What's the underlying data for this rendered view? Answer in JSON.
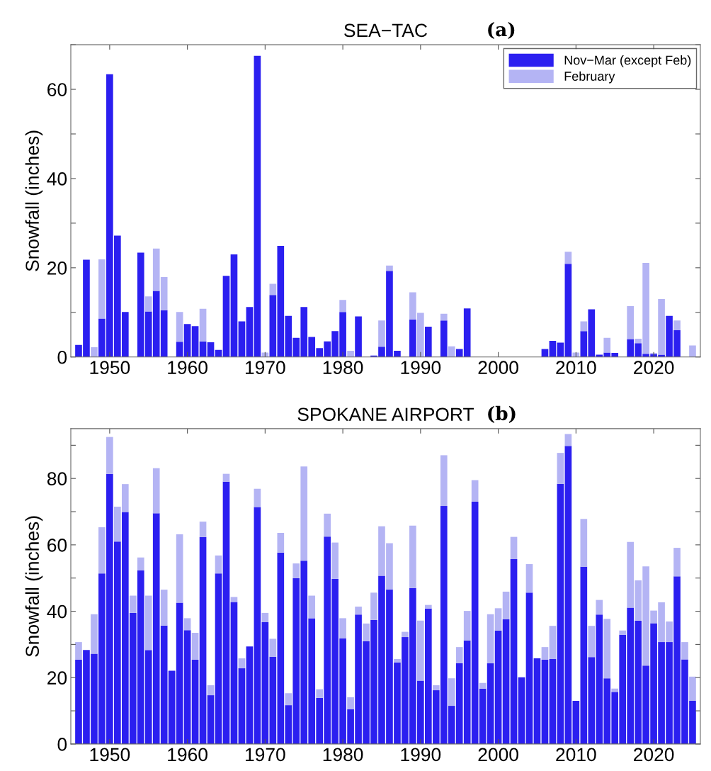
{
  "chart_data": [
    {
      "type": "bar",
      "stacked": true,
      "title": "SEA−TAC",
      "annotations": [
        "(a)"
      ],
      "ylabel": "Snowfall (inches)",
      "legend": "top right",
      "grid": false,
      "x": [
        1946,
        1947,
        1948,
        1949,
        1950,
        1951,
        1952,
        1953,
        1954,
        1955,
        1956,
        1957,
        1958,
        1959,
        1960,
        1961,
        1962,
        1963,
        1964,
        1965,
        1966,
        1967,
        1968,
        1969,
        1970,
        1971,
        1972,
        1973,
        1974,
        1975,
        1976,
        1977,
        1978,
        1979,
        1980,
        1981,
        1982,
        1983,
        1984,
        1985,
        1986,
        1987,
        1988,
        1989,
        1990,
        1991,
        1992,
        1993,
        1994,
        1995,
        1996,
        1997,
        1998,
        1999,
        2000,
        2001,
        2002,
        2003,
        2004,
        2005,
        2006,
        2007,
        2008,
        2009,
        2010,
        2011,
        2012,
        2013,
        2014,
        2015,
        2016,
        2017,
        2018,
        2019,
        2020,
        2021,
        2022,
        2023,
        2024,
        2025
      ],
      "series": [
        {
          "name": "Nov−Mar (except Feb)",
          "color": "#2b1ff0",
          "values": [
            2.7,
            21.8,
            0,
            8.6,
            63.4,
            27.2,
            10.1,
            0,
            23.4,
            10.2,
            14.8,
            10.5,
            0,
            3.4,
            7.4,
            6.9,
            3.5,
            3.3,
            1.6,
            18.2,
            23.0,
            8.0,
            11.2,
            67.5,
            0,
            13.9,
            24.9,
            9.2,
            4.3,
            11.2,
            4.5,
            2.0,
            3.5,
            5.8,
            10.1,
            0,
            9.1,
            0,
            0.3,
            2.3,
            19.3,
            1.4,
            0,
            8.4,
            0,
            6.8,
            0,
            8.2,
            0,
            1.8,
            10.9,
            0,
            0,
            0,
            0,
            0,
            0,
            0,
            0,
            0,
            1.8,
            3.6,
            3.2,
            20.9,
            0,
            5.8,
            10.7,
            0.5,
            1.0,
            0.9,
            0,
            4.0,
            3.1,
            0.7,
            0.6,
            0.5,
            9.2,
            6.0,
            0,
            0
          ]
        },
        {
          "name": "February",
          "color": "#b4b4f4",
          "values": [
            0,
            0,
            2.2,
            13.3,
            0,
            0,
            0,
            0,
            0,
            3.4,
            9.5,
            7.4,
            0,
            6.7,
            0,
            0,
            7.3,
            0,
            0,
            0,
            0,
            0,
            0,
            0,
            1.0,
            2.5,
            0,
            0,
            0,
            0,
            0,
            0,
            0,
            0,
            2.7,
            1.4,
            0,
            0,
            0,
            5.9,
            1.2,
            0,
            0,
            6.1,
            9.9,
            0,
            0,
            1.5,
            2.4,
            0,
            0,
            0,
            0,
            0,
            0,
            0,
            0,
            0,
            0,
            0,
            0,
            0,
            0,
            2.7,
            1.0,
            2.2,
            0,
            0,
            3.3,
            0,
            0,
            7.4,
            1.0,
            20.4,
            0.3,
            12.5,
            0,
            2.2,
            0,
            2.6
          ]
        }
      ],
      "xlim": [
        1945,
        2026
      ],
      "xticks": [
        1950,
        1960,
        1970,
        1980,
        1990,
        2000,
        2010,
        2020
      ],
      "ylim": [
        0,
        70
      ],
      "yticks": [
        0,
        {
          "value": 10,
          "label": null
        },
        20,
        {
          "value": 30,
          "label": null
        },
        40,
        {
          "value": 50,
          "label": null
        },
        60,
        {
          "value": 70,
          "label": null
        }
      ]
    },
    {
      "type": "bar",
      "stacked": true,
      "title": "SPOKANE AIRPORT",
      "annotations": [
        "(b)"
      ],
      "ylabel": "Snowfall (inches)",
      "grid": false,
      "x": [
        1946,
        1947,
        1948,
        1949,
        1950,
        1951,
        1952,
        1953,
        1954,
        1955,
        1956,
        1957,
        1958,
        1959,
        1960,
        1961,
        1962,
        1963,
        1964,
        1965,
        1966,
        1967,
        1968,
        1969,
        1970,
        1971,
        1972,
        1973,
        1974,
        1975,
        1976,
        1977,
        1978,
        1979,
        1980,
        1981,
        1982,
        1983,
        1984,
        1985,
        1986,
        1987,
        1988,
        1989,
        1990,
        1991,
        1992,
        1993,
        1994,
        1995,
        1996,
        1997,
        1998,
        1999,
        2000,
        2001,
        2002,
        2003,
        2004,
        2005,
        2006,
        2007,
        2008,
        2009,
        2010,
        2011,
        2012,
        2013,
        2014,
        2015,
        2016,
        2017,
        2018,
        2019,
        2020,
        2021,
        2022,
        2023,
        2024,
        2025
      ],
      "series": [
        {
          "color": "#2b1ff0",
          "values": [
            25.4,
            28.3,
            27.2,
            51.4,
            81.4,
            61.0,
            69.9,
            39.5,
            52.3,
            28.3,
            69.5,
            35.7,
            22.1,
            42.6,
            34.3,
            25.4,
            62.4,
            14.7,
            51.4,
            79.0,
            42.8,
            22.8,
            29.4,
            71.4,
            36.7,
            26.3,
            57.7,
            11.7,
            50.0,
            55.2,
            37.9,
            13.9,
            62.5,
            49.8,
            31.8,
            10.5,
            39.0,
            31.0,
            37.4,
            50.7,
            46.5,
            24.6,
            32.2,
            47.0,
            19.1,
            40.8,
            16.2,
            71.7,
            11.5,
            24.4,
            31.2,
            73.0,
            16.7,
            24.3,
            34.2,
            37.6,
            55.7,
            20.1,
            45.6,
            25.8,
            25.4,
            25.6,
            78.4,
            89.8,
            13.0,
            53.4,
            26.2,
            39.0,
            19.8,
            15.7,
            32.9,
            41.1,
            37.2,
            23.6,
            36.4,
            30.7,
            30.7,
            50.5,
            25.5,
            13.0
          ]
        },
        {
          "color": "#b4b4f4",
          "values": [
            5.3,
            0,
            11.9,
            13.9,
            11.1,
            10.5,
            8.4,
            5.2,
            3.9,
            16.4,
            13.6,
            10.8,
            0,
            20.6,
            3.6,
            8.1,
            4.6,
            3.0,
            5.4,
            2.4,
            1.5,
            3.0,
            0,
            5.5,
            2.8,
            5.4,
            5.9,
            3.6,
            4.4,
            28.4,
            6.8,
            2.6,
            6.9,
            10.9,
            6.1,
            3.6,
            2.4,
            5.3,
            8.2,
            14.9,
            14.0,
            1.0,
            1.6,
            18.8,
            18.1,
            1.1,
            1.5,
            15.3,
            8.3,
            4.8,
            8.9,
            6.5,
            1.7,
            14.8,
            6.7,
            8.3,
            6.7,
            0,
            8.6,
            0,
            3.8,
            10.0,
            9.3,
            3.6,
            0,
            14.4,
            9.4,
            4.4,
            17.9,
            1.0,
            1.3,
            19.8,
            12.1,
            29.9,
            3.8,
            12.0,
            6.2,
            8.6,
            5.2,
            7.3
          ]
        }
      ],
      "xlim": [
        1945,
        2026
      ],
      "xticks": [
        1950,
        1960,
        1970,
        1980,
        1990,
        2000,
        2010,
        2020
      ],
      "ylim": [
        0,
        95
      ],
      "yticks": [
        0,
        {
          "value": 10,
          "label": null
        },
        20,
        {
          "value": 30,
          "label": null
        },
        40,
        {
          "value": 50,
          "label": null
        },
        60,
        {
          "value": 70,
          "label": null
        },
        80,
        {
          "value": 90,
          "label": null
        }
      ]
    }
  ]
}
